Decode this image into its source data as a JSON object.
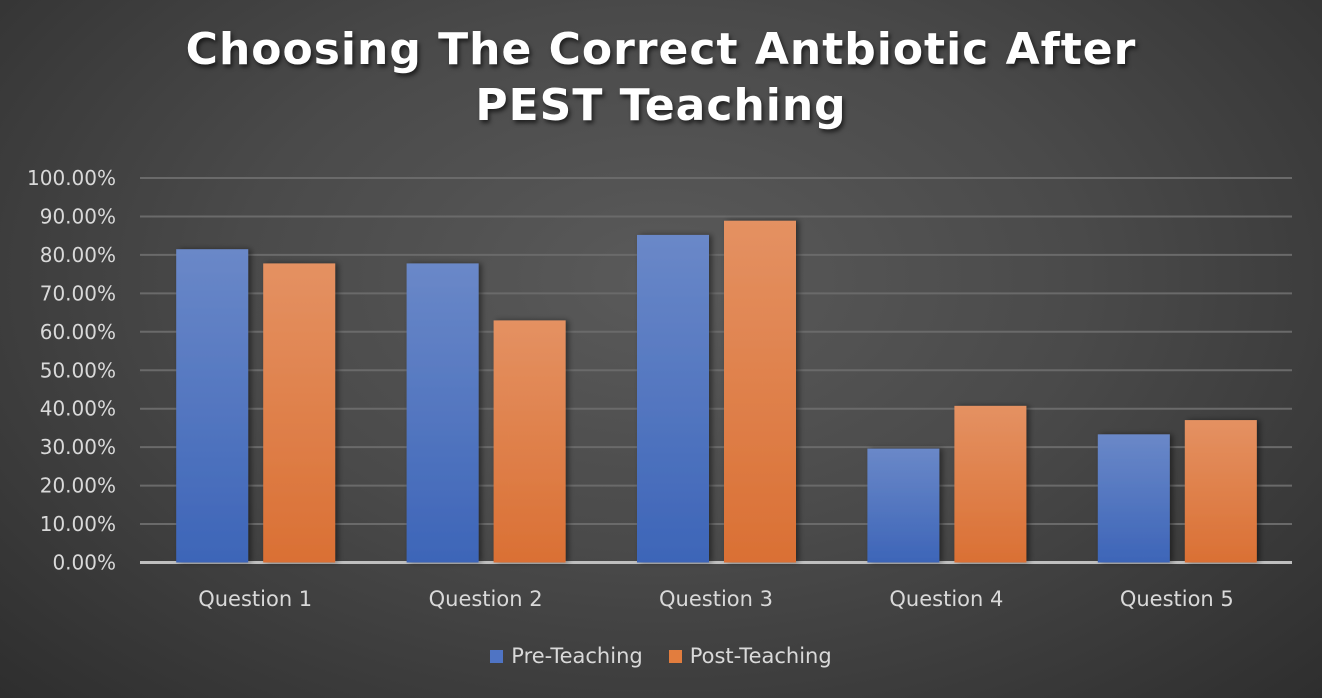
{
  "chart_data": {
    "type": "bar",
    "title_lines": [
      "Choosing The Correct Antbiotic After",
      "PEST Teaching"
    ],
    "categories": [
      "Question 1",
      "Question 2",
      "Question 3",
      "Question 4",
      "Question 5"
    ],
    "series": [
      {
        "name": "Pre-Teaching",
        "color": "#4f74c4",
        "values": [
          81.48,
          77.78,
          85.19,
          29.63,
          33.33
        ]
      },
      {
        "name": "Post-Teaching",
        "color": "#e27d3e",
        "values": [
          77.78,
          62.96,
          88.89,
          40.74,
          37.04
        ]
      }
    ],
    "ylim": [
      0,
      100
    ],
    "yticks": [
      "0.00%",
      "10.00%",
      "20.00%",
      "30.00%",
      "40.00%",
      "50.00%",
      "60.00%",
      "70.00%",
      "80.00%",
      "90.00%",
      "100.00%"
    ],
    "grid": true,
    "legend_position": "bottom",
    "xlabel": "",
    "ylabel": ""
  }
}
